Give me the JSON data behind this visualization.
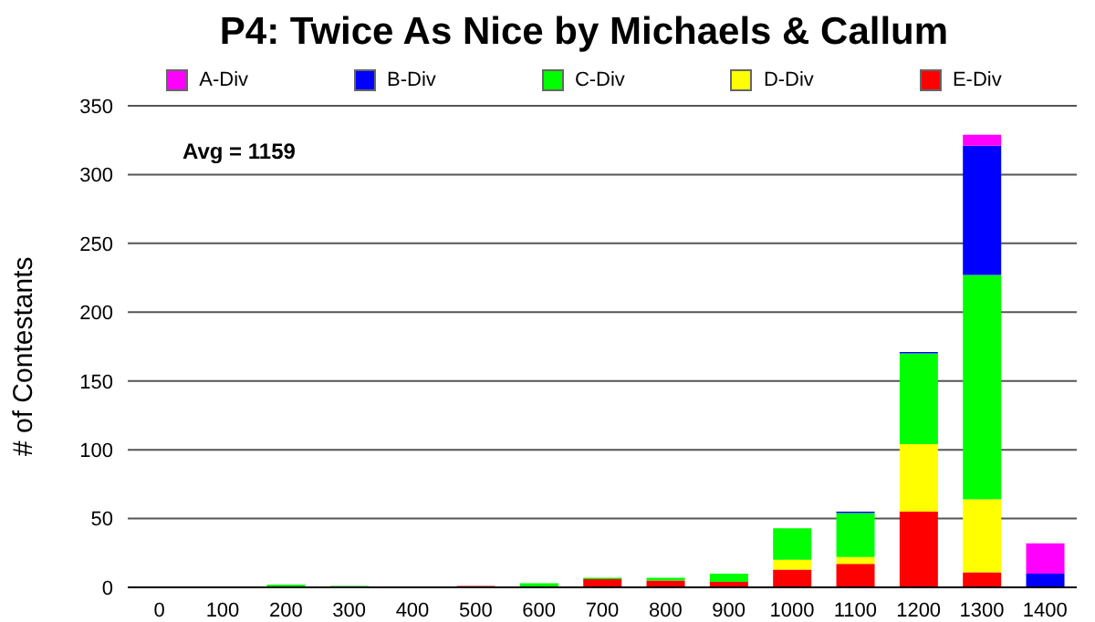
{
  "chart_data": {
    "type": "bar",
    "stacked": true,
    "title": "P4: Twice As Nice by Michaels & Callum",
    "ylabel": "# of Contestants",
    "categories": [
      "0",
      "100",
      "200",
      "300",
      "400",
      "500",
      "600",
      "700",
      "800",
      "900",
      "1000",
      "1100",
      "1200",
      "1300",
      "1400"
    ],
    "series": [
      {
        "name": "E-Div",
        "color": "#ff0000",
        "values": [
          0,
          0,
          0,
          0,
          0,
          1,
          0,
          6,
          5,
          4,
          13,
          17,
          55,
          11,
          0
        ]
      },
      {
        "name": "D-Div",
        "color": "#ffff00",
        "values": [
          0,
          0,
          0,
          0,
          0,
          0,
          0,
          0,
          0,
          0,
          7,
          5,
          49,
          53,
          0
        ]
      },
      {
        "name": "C-Div",
        "color": "#00ff00",
        "values": [
          0,
          0,
          2,
          1,
          0,
          0,
          3,
          1,
          2,
          6,
          23,
          32,
          66,
          163,
          0
        ]
      },
      {
        "name": "B-Div",
        "color": "#0000ff",
        "values": [
          0,
          0,
          0,
          0,
          0,
          0,
          0,
          0,
          0,
          0,
          0,
          1,
          1,
          94,
          10
        ]
      },
      {
        "name": "A-Div",
        "color": "#ff00ff",
        "values": [
          0,
          0,
          0,
          0,
          0,
          0,
          0,
          0,
          0,
          0,
          0,
          0,
          0,
          8,
          22
        ]
      }
    ],
    "ylim": [
      0,
      350
    ],
    "yticks": [
      0,
      50,
      100,
      150,
      200,
      250,
      300,
      350
    ],
    "grid": "y",
    "legend": "top",
    "annotations": [
      "Avg = 1159"
    ]
  }
}
